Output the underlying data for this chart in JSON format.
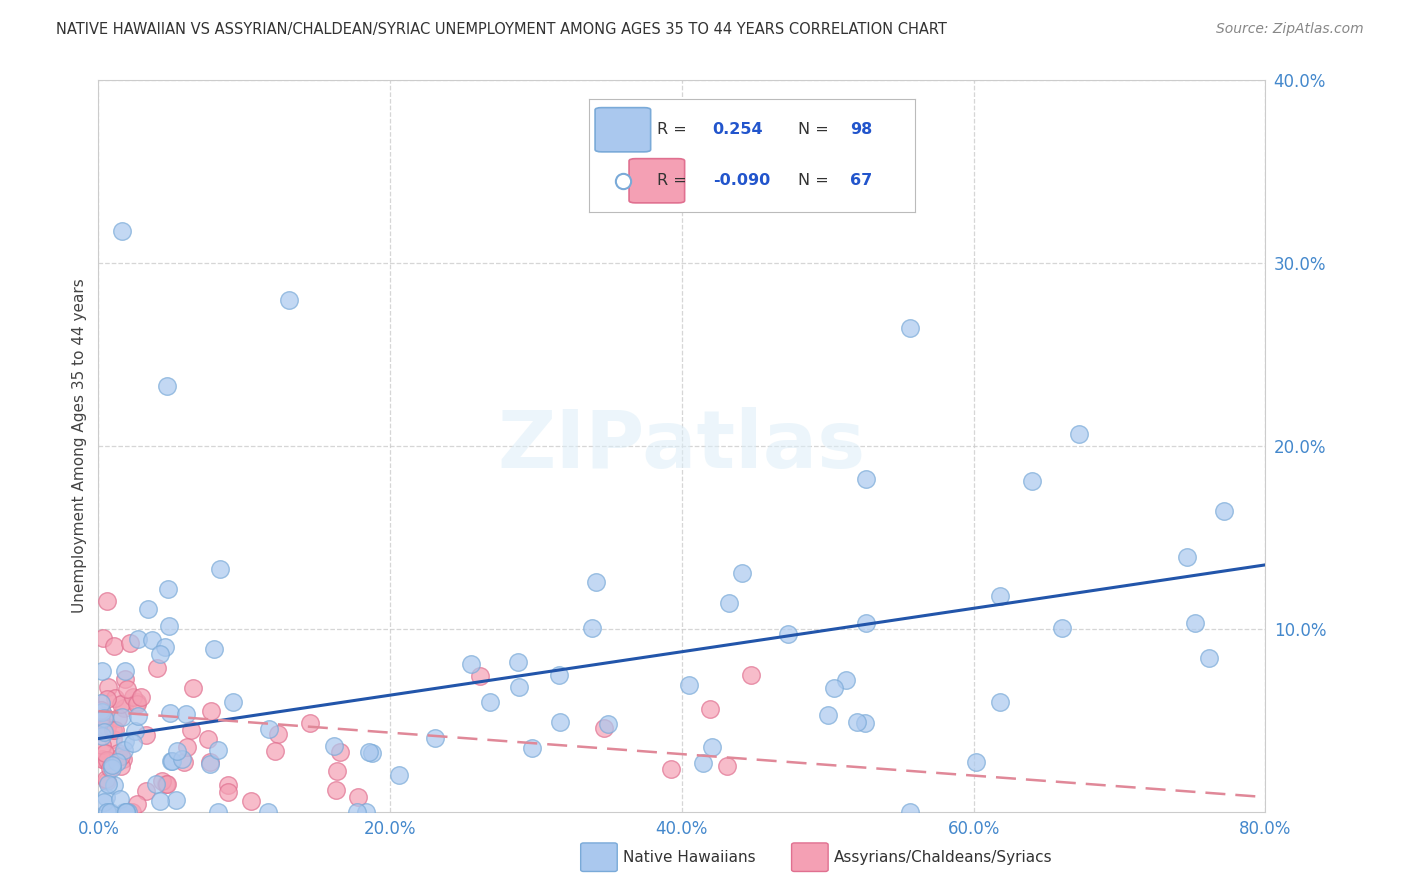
{
  "title": "NATIVE HAWAIIAN VS ASSYRIAN/CHALDEAN/SYRIAC UNEMPLOYMENT AMONG AGES 35 TO 44 YEARS CORRELATION CHART",
  "source": "Source: ZipAtlas.com",
  "xlabel_blue": "Native Hawaiians",
  "xlabel_pink": "Assyrians/Chaldeans/Syriacs",
  "ylabel": "Unemployment Among Ages 35 to 44 years",
  "xlim": [
    0,
    0.8
  ],
  "ylim": [
    0,
    0.4
  ],
  "xticks": [
    0.0,
    0.2,
    0.4,
    0.6,
    0.8
  ],
  "yticks": [
    0.1,
    0.2,
    0.3,
    0.4
  ],
  "R_blue": 0.254,
  "N_blue": 98,
  "R_pink": -0.09,
  "N_pink": 67,
  "blue_color": "#aac8ee",
  "blue_edge": "#7aaad8",
  "pink_color": "#f4a0b4",
  "pink_edge": "#e07090",
  "trendline_blue": "#2255aa",
  "trendline_pink": "#e08898",
  "watermark": "ZIPatlas",
  "background_color": "#ffffff",
  "grid_color": "#cccccc",
  "tick_color": "#4488cc",
  "title_color": "#333333",
  "ylabel_color": "#444444",
  "legend_text_color": "#333333",
  "legend_value_color": "#2255cc"
}
